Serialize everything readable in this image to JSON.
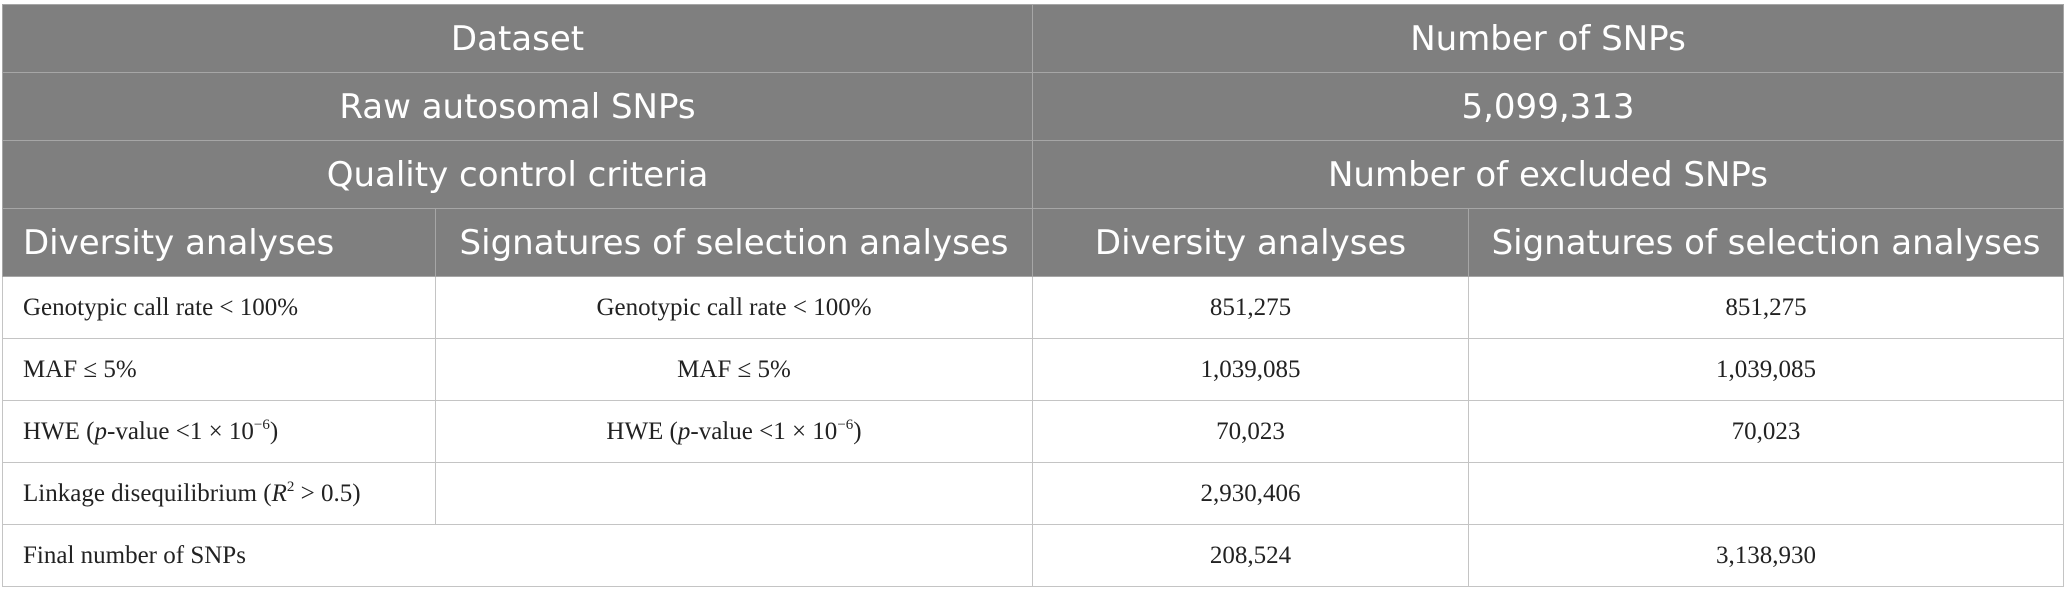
{
  "header": {
    "dataset": "Dataset",
    "number_of_snps": "Number of SNPs",
    "raw_label": "Raw autosomal SNPs",
    "raw_value": "5,099,313",
    "qc_criteria": "Quality control criteria",
    "excluded": "Number of excluded SNPs",
    "diversity_analyses": "Diversity analyses",
    "selection_analyses": "Signatures of selection analyses",
    "diversity_analyses_2": "Diversity analyses",
    "selection_analyses_2": "Signatures of selection analyses"
  },
  "rows": [
    {
      "div_criterion": "Genotypic call rate < 100%",
      "sel_criterion": "Genotypic call rate < 100%",
      "div_value": "851,275",
      "sel_value": "851,275"
    },
    {
      "div_criterion": "MAF ≤ 5%",
      "sel_criterion": "MAF ≤ 5%",
      "div_value": "1,039,085",
      "sel_value": "1,039,085"
    },
    {
      "div_criterion_pre": "HWE (",
      "div_criterion_p": "p",
      "div_criterion_post": "-value <1 × 10",
      "div_criterion_exp": "−6",
      "div_criterion_close": ")",
      "sel_criterion_pre": "HWE (",
      "sel_criterion_p": "p",
      "sel_criterion_post": "-value <1 × 10",
      "sel_criterion_exp": "−6",
      "sel_criterion_close": ")",
      "div_value": "70,023",
      "sel_value": "70,023"
    },
    {
      "div_criterion_pre": "Linkage disequilibrium (",
      "div_criterion_r": "R",
      "div_criterion_exp": "2",
      "div_criterion_post": " > 0.5)",
      "sel_criterion": "",
      "div_value": "2,930,406",
      "sel_value": ""
    }
  ],
  "final": {
    "label": "Final number of SNPs",
    "div_value": "208,524",
    "sel_value": "3,138,930"
  }
}
